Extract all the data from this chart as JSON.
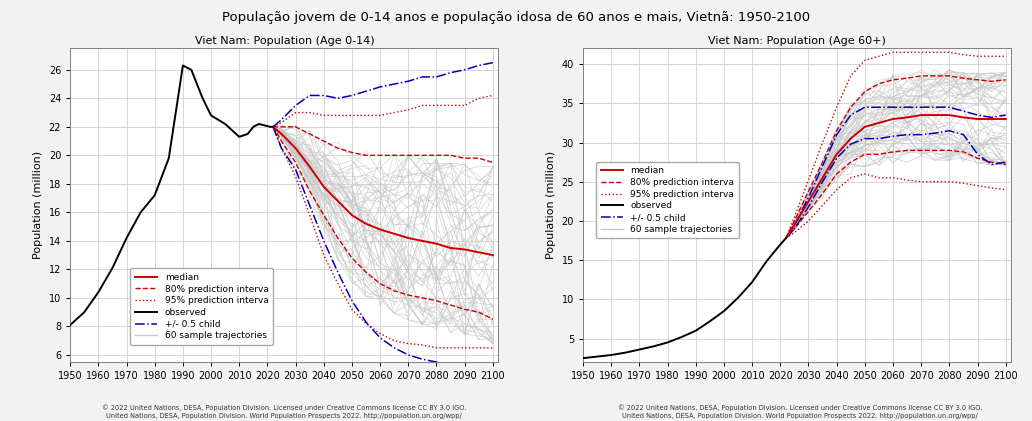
{
  "title": "População jovem de 0-14 anos e população idosa de 60 anos e mais, Vietnã: 1950-2100",
  "subtitle_left": "Viet Nam: Population (Age 0-14)",
  "subtitle_right": "Viet Nam: Population (Age 60+)",
  "footnote_left": "© 2022 United Nations, DESA, Population Division. Licensed under Creative Commons license CC BY 3.0 IGO.\nUnited Nations, DESA, Population Division. World Population Prospects 2022. http://population.un.org/wpp/",
  "footnote_right": "© 2022 United Nations, DESA, Population Division. Licensed under Creative Commons license CC BY 3.0 IGO.\nUnited Nations, DESA, Population Division. World Population Prospects 2022. http://population.un.org/wpp/",
  "ylabel": "Population (million)",
  "bg_color": "#f2f2f2",
  "plot_bg_color": "#ffffff",
  "grid_color": "#d0d0d0",
  "left": {
    "xlim": [
      1950,
      2102
    ],
    "ylim": [
      5.5,
      27.5
    ],
    "yticks": [
      6,
      8,
      10,
      12,
      14,
      16,
      18,
      20,
      22,
      24,
      26
    ],
    "xticks": [
      1950,
      1960,
      1970,
      1980,
      1990,
      2000,
      2010,
      2020,
      2030,
      2040,
      2050,
      2060,
      2070,
      2080,
      2090,
      2100
    ],
    "observed_years": [
      1950,
      1955,
      1960,
      1965,
      1970,
      1975,
      1980,
      1985,
      1990,
      1993,
      1997,
      2000,
      2005,
      2010,
      2013,
      2015,
      2017,
      2019,
      2021,
      2022
    ],
    "observed_values": [
      8.1,
      9.0,
      10.4,
      12.1,
      14.2,
      16.0,
      17.2,
      19.8,
      26.3,
      26.0,
      24.0,
      22.8,
      22.2,
      21.3,
      21.5,
      22.0,
      22.2,
      22.1,
      22.0,
      22.0
    ],
    "proj_years": [
      2022,
      2025,
      2030,
      2035,
      2040,
      2045,
      2050,
      2055,
      2060,
      2065,
      2070,
      2075,
      2080,
      2085,
      2090,
      2095,
      2100
    ],
    "median": [
      22.0,
      21.5,
      20.5,
      19.2,
      17.8,
      16.8,
      15.8,
      15.2,
      14.8,
      14.5,
      14.2,
      14.0,
      13.8,
      13.5,
      13.4,
      13.2,
      13.0
    ],
    "pi80_upper": [
      22.0,
      22.0,
      22.0,
      21.5,
      21.0,
      20.5,
      20.2,
      20.0,
      20.0,
      20.0,
      20.0,
      20.0,
      20.0,
      20.0,
      19.8,
      19.8,
      19.5
    ],
    "pi80_lower": [
      22.0,
      21.0,
      19.5,
      17.5,
      15.8,
      14.2,
      12.8,
      11.8,
      11.0,
      10.5,
      10.2,
      10.0,
      9.8,
      9.5,
      9.2,
      9.0,
      8.5
    ],
    "pi95_upper": [
      22.0,
      22.3,
      23.0,
      23.0,
      22.8,
      22.8,
      22.8,
      22.8,
      22.8,
      23.0,
      23.2,
      23.5,
      23.5,
      23.5,
      23.5,
      24.0,
      24.2
    ],
    "pi95_lower": [
      22.0,
      20.5,
      18.5,
      15.8,
      13.0,
      11.0,
      9.2,
      8.2,
      7.5,
      7.0,
      6.8,
      6.7,
      6.5,
      6.5,
      6.5,
      6.5,
      6.5
    ],
    "halfchild_upper": [
      22.0,
      22.5,
      23.5,
      24.2,
      24.2,
      24.0,
      24.2,
      24.5,
      24.8,
      25.0,
      25.2,
      25.5,
      25.5,
      25.8,
      26.0,
      26.3,
      26.5
    ],
    "halfchild_lower": [
      22.0,
      20.5,
      19.0,
      16.5,
      14.0,
      11.8,
      9.8,
      8.3,
      7.2,
      6.5,
      6.0,
      5.7,
      5.5,
      5.3,
      5.2,
      5.1,
      5.1
    ]
  },
  "right": {
    "xlim": [
      1950,
      2102
    ],
    "ylim": [
      2,
      42
    ],
    "yticks": [
      5,
      10,
      15,
      20,
      25,
      30,
      35,
      40
    ],
    "xticks": [
      1950,
      1960,
      1970,
      1980,
      1990,
      2000,
      2010,
      2020,
      2030,
      2040,
      2050,
      2060,
      2070,
      2080,
      2090,
      2100
    ],
    "observed_years": [
      1950,
      1955,
      1960,
      1965,
      1970,
      1975,
      1980,
      1985,
      1990,
      1995,
      2000,
      2005,
      2010,
      2015,
      2020,
      2022
    ],
    "observed_values": [
      2.5,
      2.7,
      2.9,
      3.2,
      3.6,
      4.0,
      4.5,
      5.2,
      6.0,
      7.2,
      8.5,
      10.2,
      12.2,
      14.8,
      17.0,
      17.8
    ],
    "proj_years": [
      2022,
      2025,
      2030,
      2035,
      2040,
      2045,
      2050,
      2055,
      2060,
      2065,
      2070,
      2075,
      2080,
      2085,
      2090,
      2095,
      2100
    ],
    "median": [
      17.8,
      19.5,
      22.5,
      25.5,
      28.5,
      30.5,
      32.0,
      32.5,
      33.0,
      33.2,
      33.5,
      33.5,
      33.5,
      33.2,
      33.0,
      33.0,
      33.0
    ],
    "pi80_upper": [
      17.8,
      20.0,
      23.8,
      27.5,
      31.5,
      34.5,
      36.5,
      37.5,
      38.0,
      38.2,
      38.5,
      38.5,
      38.5,
      38.2,
      38.0,
      37.8,
      38.0
    ],
    "pi80_lower": [
      17.8,
      19.0,
      21.2,
      23.5,
      26.0,
      27.5,
      28.5,
      28.5,
      28.8,
      29.0,
      29.0,
      29.0,
      29.0,
      28.8,
      28.0,
      27.5,
      27.2
    ],
    "pi95_upper": [
      17.8,
      20.5,
      25.2,
      30.0,
      34.5,
      38.5,
      40.5,
      41.0,
      41.5,
      41.5,
      41.5,
      41.5,
      41.5,
      41.2,
      41.0,
      41.0,
      41.0
    ],
    "pi95_lower": [
      17.8,
      18.5,
      20.0,
      22.0,
      24.0,
      25.5,
      26.0,
      25.5,
      25.5,
      25.2,
      25.0,
      25.0,
      25.0,
      24.8,
      24.5,
      24.2,
      24.0
    ],
    "halfchild_upper": [
      17.8,
      19.5,
      23.0,
      27.0,
      31.0,
      33.5,
      34.5,
      34.5,
      34.5,
      34.5,
      34.5,
      34.5,
      34.5,
      34.0,
      33.5,
      33.2,
      33.5
    ],
    "halfchild_lower": [
      17.8,
      19.0,
      21.8,
      25.0,
      28.0,
      29.8,
      30.5,
      30.5,
      30.8,
      31.0,
      31.0,
      31.2,
      31.5,
      31.0,
      28.5,
      27.2,
      27.5
    ]
  },
  "colors": {
    "observed": "#000000",
    "median": "#cc0000",
    "pi80": "#cc0000",
    "pi95": "#cc0000",
    "halfchild": "#0000bb",
    "trajectories": "#c8c8c8"
  },
  "legend_labels": [
    "median",
    "80% prediction interva",
    "95% prediction interva",
    "observed",
    "+/- 0.5 child",
    "60 sample trajectories"
  ]
}
